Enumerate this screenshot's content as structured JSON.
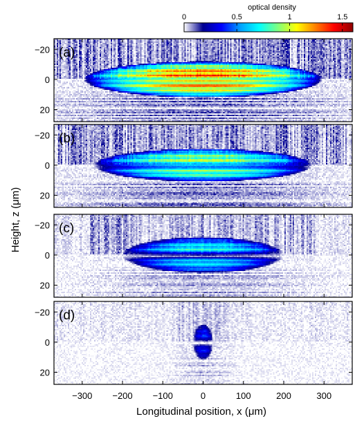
{
  "chart_data": {
    "type": "heatmap",
    "xlabel": "Longitudinal position, x (μm)",
    "ylabel": "Height, z (μm)",
    "xlim": [
      -370,
      370
    ],
    "ylim": [
      -27,
      28
    ],
    "y_inverted": true,
    "x_ticks": [
      -300,
      -200,
      -100,
      0,
      100,
      200,
      300
    ],
    "x_tick_labels": [
      "−300",
      "−200",
      "−100",
      "0",
      "100",
      "200",
      "300"
    ],
    "y_ticks": [
      -20,
      0,
      20
    ],
    "y_tick_labels": [
      "−20",
      "0",
      "20"
    ],
    "colorbar": {
      "label": "optical density",
      "range": [
        0,
        1.6
      ],
      "ticks": [
        0,
        0.5,
        1,
        1.5
      ],
      "tick_labels": [
        "0",
        "0.5",
        "1",
        "1.5"
      ],
      "colors": [
        "#ffffff",
        "#00008f",
        "#0000ff",
        "#00a0ff",
        "#00ffff",
        "#7fff7f",
        "#ffff00",
        "#ff8000",
        "#ff0000",
        "#8f0000"
      ]
    },
    "panels": [
      {
        "label": "(a)",
        "halfLength": 295,
        "halfHeight": 12,
        "peak": 1.45,
        "splitAmp": 0.25,
        "density_noise": 0.18
      },
      {
        "label": "(b)",
        "halfLength": 270,
        "halfHeight": 11,
        "peak": 1.1,
        "splitAmp": 0.5,
        "density_noise": 0.16
      },
      {
        "label": "(c)",
        "halfLength": 200,
        "halfHeight": 12,
        "peak": 0.85,
        "splitAmp": 0.9,
        "density_noise": 0.12
      },
      {
        "label": "(d)",
        "halfLength": 25,
        "halfHeight": 12,
        "peak": 0.45,
        "splitAmp": 1.0,
        "density_noise": 0.08
      }
    ]
  }
}
